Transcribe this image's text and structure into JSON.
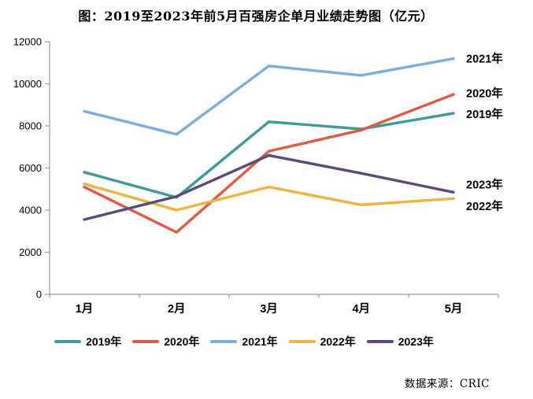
{
  "chart_data": {
    "type": "line",
    "title": "图：2019至2023年前5月百强房企单月业绩走势图（亿元）",
    "unit": "亿元",
    "categories": [
      "1月",
      "2月",
      "3月",
      "4月",
      "5月"
    ],
    "series": [
      {
        "name": "2019年",
        "color": "#3d9b9a",
        "values": [
          5800,
          4600,
          8200,
          7850,
          8600
        ]
      },
      {
        "name": "2020年",
        "color": "#e15a41",
        "values": [
          5100,
          2950,
          6800,
          7800,
          9500
        ]
      },
      {
        "name": "2021年",
        "color": "#79aede",
        "values": [
          8700,
          7600,
          10850,
          10400,
          11200
        ]
      },
      {
        "name": "2022年",
        "color": "#f0b341",
        "values": [
          5250,
          4000,
          5100,
          4250,
          4550
        ]
      },
      {
        "name": "2023年",
        "color": "#5c4a7b",
        "values": [
          3550,
          4650,
          6600,
          5750,
          4850
        ]
      }
    ],
    "ylim": [
      0,
      12000
    ],
    "ytick_step": 2000,
    "yticks": [
      0,
      2000,
      4000,
      6000,
      8000,
      10000,
      12000
    ],
    "grid": false,
    "legend_position": "bottom",
    "right_edge_labels": [
      "2021年",
      "2020年",
      "2019年",
      "2023年",
      "2022年"
    ],
    "axis_color": "#9b9b9b"
  },
  "source_note": "数据来源：CRIC"
}
